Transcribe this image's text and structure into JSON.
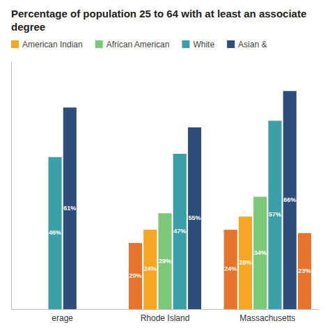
{
  "chart_data": {
    "type": "bar",
    "title": "Percentage of population 25 to 64 with at least an associate degree",
    "categories": [
      "erage",
      "Rhode Island",
      "Massachusetts"
    ],
    "series": [
      {
        "color": "#e8732a",
        "values": [
          null,
          20,
          24
        ],
        "value_labels": [
          null,
          "20%",
          "24%"
        ]
      },
      {
        "name": "American Indian",
        "color": "#f5a623",
        "values": [
          null,
          24,
          28
        ],
        "value_labels": [
          null,
          "24%",
          "28%"
        ]
      },
      {
        "name": "African American",
        "color": "#7dc878",
        "values": [
          null,
          29,
          34
        ],
        "value_labels": [
          null,
          "29%",
          "34%"
        ]
      },
      {
        "name": "White",
        "color": "#3a9fa8",
        "values": [
          46,
          47,
          57
        ],
        "value_labels": [
          "46%",
          "47%",
          "57%"
        ]
      },
      {
        "name": "Asian &",
        "color": "#2e4d7b",
        "values": [
          61,
          55,
          66
        ],
        "value_labels": [
          "61%",
          "55%",
          "66%"
        ]
      },
      {
        "color": "#e8732a",
        "values": [
          null,
          null,
          23
        ],
        "value_labels": [
          null,
          null,
          "23%"
        ]
      }
    ],
    "ylim": [
      0,
      75
    ],
    "data_labels": true,
    "tick_labels": "x"
  }
}
